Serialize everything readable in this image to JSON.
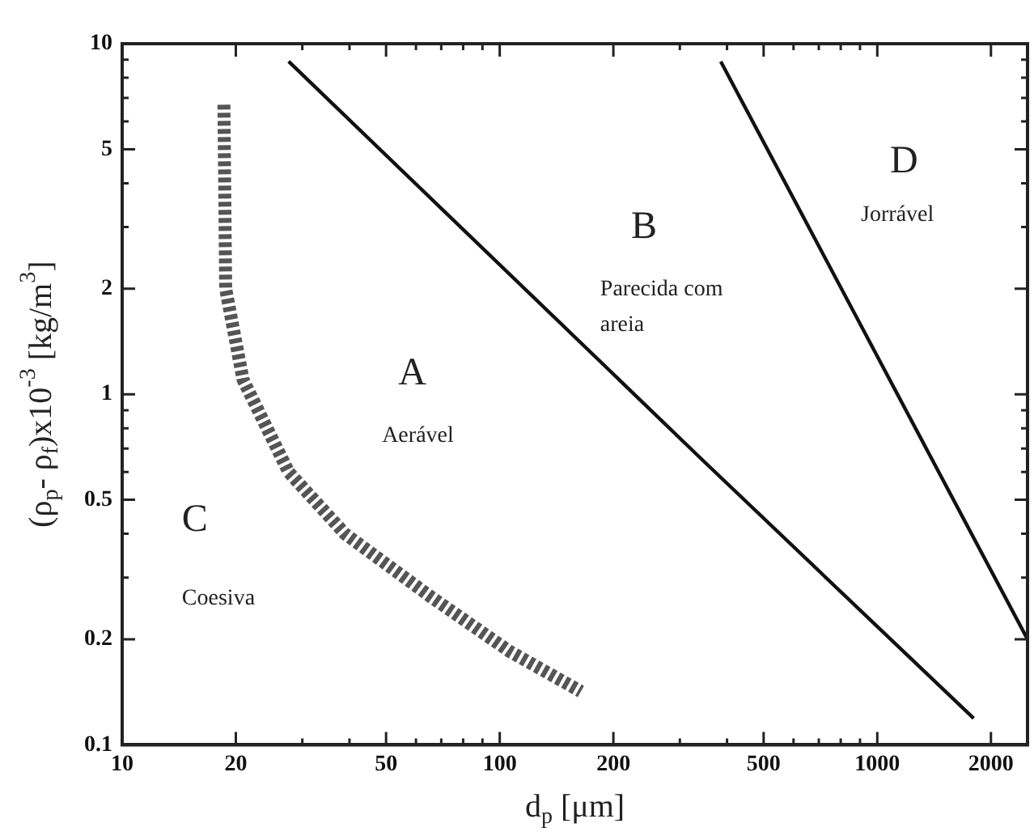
{
  "chart_data": {
    "type": "line",
    "xlabel": "d$_{p}$ [μm]",
    "ylabel": "(ρ$_{p}$- ρ$_{f}$)x10$^{-3}$ [kg/m$^{3}$]",
    "log": "xy",
    "xlim": [
      10,
      2500
    ],
    "ylim": [
      0.1,
      10
    ],
    "xticks": [
      10,
      20,
      {
        "value": 30,
        "label": null
      },
      {
        "value": 40,
        "label": null
      },
      50,
      {
        "value": 60,
        "label": null
      },
      {
        "value": 70,
        "label": null
      },
      {
        "value": 80,
        "label": null
      },
      {
        "value": 90,
        "label": null
      },
      100,
      200,
      {
        "value": 300,
        "label": null
      },
      {
        "value": 400,
        "label": null
      },
      500,
      {
        "value": 600,
        "label": null
      },
      {
        "value": 700,
        "label": null
      },
      {
        "value": 800,
        "label": null
      },
      {
        "value": 900,
        "label": null
      },
      1000,
      2000
    ],
    "yticks": [
      0.1,
      0.2,
      {
        "value": 0.3,
        "label": null
      },
      {
        "value": 0.4,
        "label": null
      },
      0.5,
      {
        "value": 0.6,
        "label": null
      },
      {
        "value": 0.7,
        "label": null
      },
      {
        "value": 0.8,
        "label": null
      },
      {
        "value": 0.9,
        "label": null
      },
      1,
      2,
      {
        "value": 3,
        "label": null
      },
      {
        "value": 4,
        "label": null
      },
      5,
      {
        "value": 6,
        "label": null
      },
      {
        "value": 7,
        "label": null
      },
      {
        "value": 8,
        "label": null
      },
      {
        "value": 9,
        "label": null
      },
      10
    ],
    "marker": "none",
    "series": [
      {
        "color": "#555555",
        "line_style": "dashed",
        "x": [
          18.6,
          18.8,
          20.9,
          27.6,
          38.9,
          65.5,
          106,
          164
        ],
        "values": [
          6.7,
          2.0,
          1.1,
          0.6,
          0.4,
          0.265,
          0.185,
          0.142
        ]
      },
      {
        "color": "#111111",
        "line_style": "solid",
        "x": [
          27.6,
          344,
          1800
        ],
        "values": [
          8.9,
          0.65,
          0.119
        ]
      },
      {
        "color": "#111111",
        "line_style": "solid",
        "x": [
          385,
          2500
        ],
        "values": [
          8.9,
          0.2
        ]
      }
    ],
    "annotations": [
      "A",
      "Aerável",
      "B",
      "Parecida com\nareia",
      "C",
      "Coesiva",
      "D",
      "Jorrável"
    ]
  }
}
